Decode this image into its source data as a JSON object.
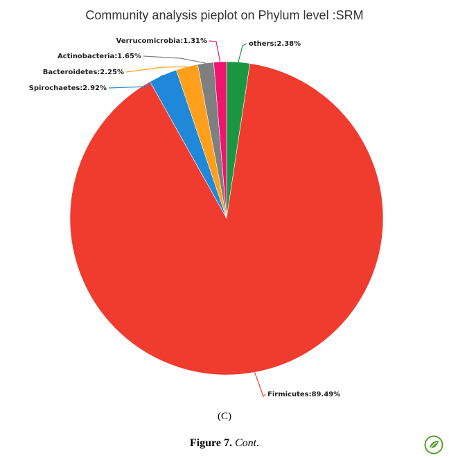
{
  "chart_data": {
    "type": "pie",
    "title": "Community analysis pieplot on Phylum level :SRM",
    "slices": [
      {
        "name": "others",
        "value": 2.38,
        "label": "others:2.38%",
        "color": "#1a9641"
      },
      {
        "name": "Firmicutes",
        "value": 89.49,
        "label": "Firmicutes:89.49%",
        "color": "#f03c2f"
      },
      {
        "name": "Spirochaetes",
        "value": 2.92,
        "label": "Spirochaetes:2.92%",
        "color": "#1f88d8"
      },
      {
        "name": "Bacteroidetes",
        "value": 2.25,
        "label": "Bacteroidetes:2.25%",
        "color": "#ff9f1c"
      },
      {
        "name": "Actinobacteria",
        "value": 1.65,
        "label": "Actinobacteria:1.65%",
        "color": "#7f7f7f"
      },
      {
        "name": "Verrucomicrobia",
        "value": 1.31,
        "label": "Verrucomicrobia:1.31%",
        "color": "#f0146e"
      }
    ]
  },
  "panel_label": "(C)",
  "caption": {
    "figure_number": "Figure 7.",
    "cont": "Cont."
  }
}
